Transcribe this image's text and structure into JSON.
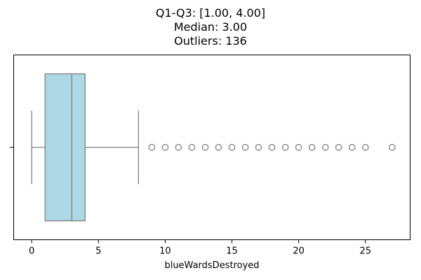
{
  "chart_data": {
    "type": "box",
    "title_lines": [
      "Q1-Q3: [1.00, 4.00]",
      "Median: 3.00",
      "Outliers: 136"
    ],
    "xlabel": "blueWardsDestroyed",
    "ylabel": "",
    "orientation": "horizontal",
    "xlim": [
      -1.35,
      28.35
    ],
    "xticks": [
      0,
      5,
      10,
      15,
      20,
      25
    ],
    "whisker_low": 0,
    "q1": 1,
    "median": 3,
    "q3": 4,
    "whisker_high": 8,
    "outliers": [
      9,
      10,
      11,
      12,
      13,
      14,
      15,
      16,
      17,
      18,
      19,
      20,
      21,
      22,
      23,
      24,
      25,
      27
    ],
    "colors": {
      "box_fill": "#add8e6",
      "line": "#808080"
    },
    "grid": false
  }
}
